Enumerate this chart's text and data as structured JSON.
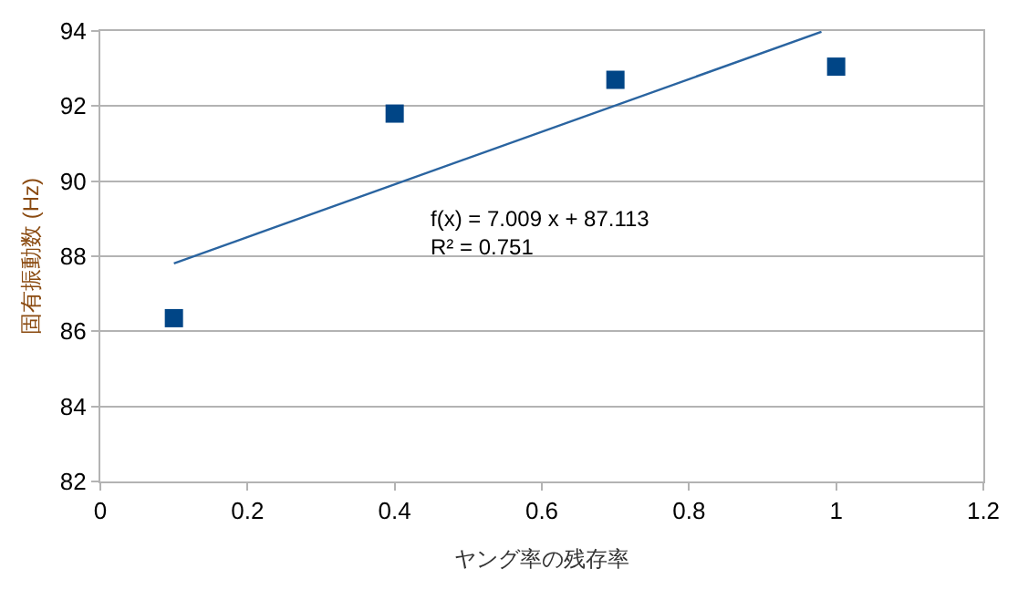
{
  "chart_data": {
    "type": "scatter",
    "xlabel": "ヤング率の残存率",
    "ylabel": "固有振動数 (Hz)",
    "x": [
      0.1,
      0.4,
      0.7,
      1.0
    ],
    "series": [
      {
        "color": "#004586",
        "marker": "square",
        "values": [
          86.35,
          91.8,
          92.7,
          93.05
        ]
      },
      {
        "type": "line",
        "color": "#2a64a0",
        "x": [
          0.1,
          0.98
        ],
        "values": [
          87.81,
          93.98
        ]
      }
    ],
    "annotations": [
      "f(x) = 7.009 x + 87.113\nR² = 0.751"
    ],
    "xlim": [
      0,
      1.2
    ],
    "xticks": [
      0,
      0.2,
      0.4,
      0.6,
      0.8,
      1,
      1.2
    ],
    "ylim": [
      82,
      94
    ],
    "yticks": [
      82,
      84,
      86,
      88,
      90,
      92,
      94
    ],
    "grid": "y",
    "legend": false
  }
}
